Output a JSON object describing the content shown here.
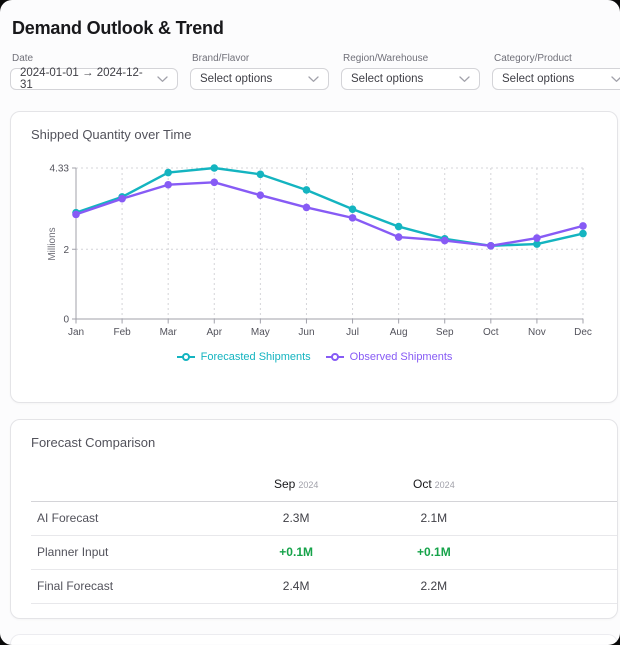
{
  "header": {
    "title": "Demand Outlook & Trend"
  },
  "filters": [
    {
      "label": "Date",
      "value": "2024-01-01 → 2024-12-31"
    },
    {
      "label": "Brand/Flavor",
      "value": "Select options"
    },
    {
      "label": "Region/Warehouse",
      "value": "Select options"
    },
    {
      "label": "Category/Product",
      "value": "Select options"
    }
  ],
  "chart_card": {
    "title": "Shipped Quantity over Time"
  },
  "chart_data": {
    "type": "line",
    "title": "Shipped Quantity over Time",
    "x": [
      "Jan",
      "Feb",
      "Mar",
      "Apr",
      "May",
      "Jun",
      "Jul",
      "Aug",
      "Sep",
      "Oct",
      "Nov",
      "Dec"
    ],
    "ylabel": "Millions",
    "ylim": [
      0,
      4.33
    ],
    "yticks": [
      0,
      2,
      4.33
    ],
    "grid": true,
    "legend_position": "bottom",
    "series": [
      {
        "name": "Forecasted Shipments",
        "color": "#14b4c0",
        "values": [
          3.05,
          3.5,
          4.2,
          4.33,
          4.15,
          3.7,
          3.15,
          2.65,
          2.3,
          2.1,
          2.15,
          2.45
        ]
      },
      {
        "name": "Observed Shipments",
        "color": "#875bf5",
        "values": [
          3.0,
          3.45,
          3.85,
          3.92,
          3.55,
          3.2,
          2.9,
          2.35,
          2.25,
          2.1,
          2.32,
          2.67
        ]
      }
    ]
  },
  "table_card": {
    "title": "Forecast Comparison",
    "columns": [
      {
        "month": "Sep",
        "year": "2024"
      },
      {
        "month": "Oct",
        "year": "2024"
      }
    ],
    "rows": [
      {
        "label": "AI Forecast",
        "values": [
          "2.3M",
          "2.1M"
        ]
      },
      {
        "label": "Planner Input",
        "values": [
          "+0.1M",
          "+0.1M"
        ]
      },
      {
        "label": "Final Forecast",
        "values": [
          "2.4M",
          "2.2M"
        ]
      }
    ]
  },
  "colors": {
    "teal": "#14b4c0",
    "purple": "#875bf5",
    "positive_green": "#16a34a",
    "axis": "#a1a1aa",
    "grid": "#d4d4d8"
  }
}
